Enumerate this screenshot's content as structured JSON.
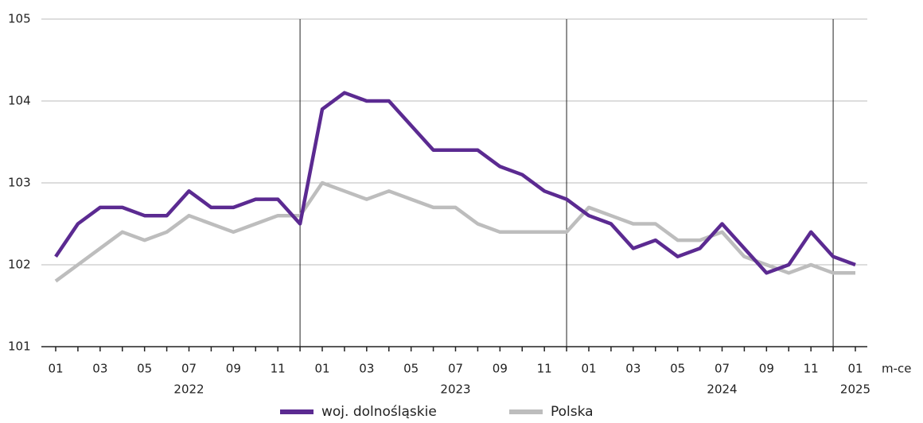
{
  "chart_data": {
    "type": "line",
    "categories": [
      "01",
      null,
      "03",
      null,
      "05",
      null,
      "07",
      null,
      "09",
      null,
      "11",
      null,
      "01",
      null,
      "03",
      null,
      "05",
      null,
      "07",
      null,
      "09",
      null,
      "11",
      null,
      "01",
      null,
      "03",
      null,
      "05",
      null,
      "07",
      null,
      "09",
      null,
      "11",
      null,
      "01"
    ],
    "years": [
      "2022",
      "2023",
      "2024",
      "2025"
    ],
    "x_label": "m-ce",
    "series": [
      {
        "name": "woj. dolnośląskie",
        "color": "#5b2a91",
        "values": [
          102.1,
          102.5,
          102.7,
          102.7,
          102.6,
          102.6,
          102.9,
          102.7,
          102.7,
          102.8,
          102.8,
          102.5,
          103.9,
          104.1,
          104.0,
          104.0,
          103.7,
          103.4,
          103.4,
          103.4,
          103.2,
          103.1,
          102.9,
          102.8,
          102.6,
          102.5,
          102.2,
          102.3,
          102.1,
          102.2,
          102.5,
          102.2,
          101.9,
          102.0,
          102.4,
          102.1,
          102.0
        ]
      },
      {
        "name": "Polska",
        "color": "#bdbdbd",
        "values": [
          101.8,
          102.0,
          102.2,
          102.4,
          102.3,
          102.4,
          102.6,
          102.5,
          102.4,
          102.5,
          102.6,
          102.6,
          103.0,
          102.9,
          102.8,
          102.9,
          102.8,
          102.7,
          102.7,
          102.5,
          102.4,
          102.4,
          102.4,
          102.4,
          102.7,
          102.6,
          102.5,
          102.5,
          102.3,
          102.3,
          102.4,
          102.1,
          102.0,
          101.9,
          102.0,
          101.9,
          101.9
        ]
      }
    ],
    "ylim": [
      101,
      105
    ],
    "yticks": [
      101,
      102,
      103,
      104,
      105
    ],
    "grid": true,
    "legend": "bottom"
  }
}
